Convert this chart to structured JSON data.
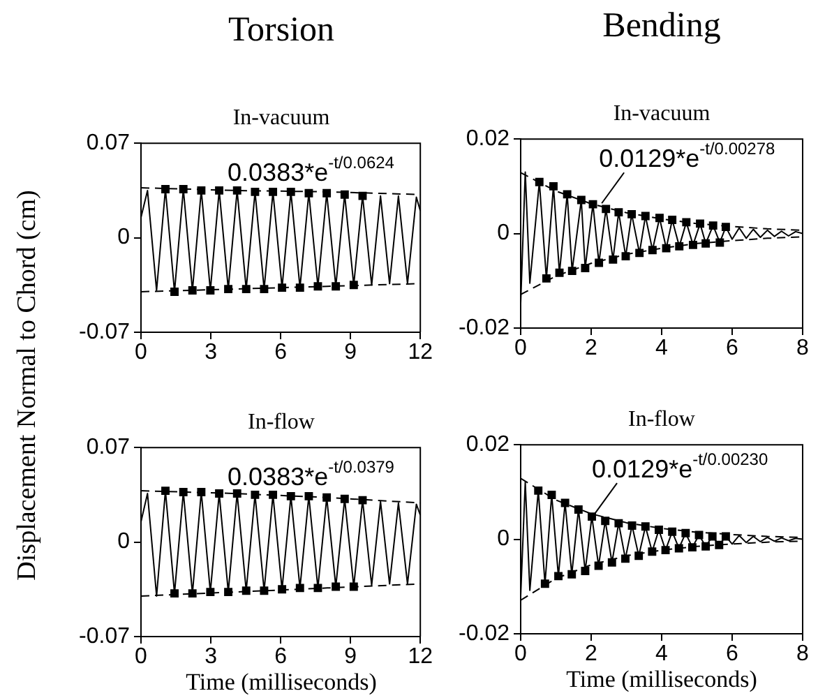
{
  "chart_data": [
    {
      "type": "line",
      "title": "Torsion",
      "subtitle": "In-vacuum",
      "ylabel": "Displacement Normal to Chord (cm)",
      "xlim": [
        0,
        12
      ],
      "ylim": [
        -0.07,
        0.07
      ],
      "xticks": [
        0,
        3,
        6,
        9,
        12
      ],
      "yticks": [
        -0.07,
        0,
        0.07
      ],
      "annotations": [
        "0.0383*e$^{-t/0.0624}$"
      ],
      "series": [
        {
          "type": "line",
          "color": "#000000",
          "marker": "none",
          "line_style": "solid",
          "x": [
            0,
            0.28,
            0.67,
            1.05,
            1.44,
            1.82,
            2.21,
            2.59,
            2.98,
            3.36,
            3.75,
            4.13,
            4.52,
            4.9,
            5.29,
            5.67,
            6.06,
            6.44,
            6.83,
            7.21,
            7.6,
            7.98,
            8.37,
            8.75,
            9.14,
            9.52,
            9.91,
            10.29,
            10.68,
            11.06,
            11.45,
            11.83,
            12
          ],
          "values": [
            0.015,
            0.035,
            -0.039,
            0.036,
            -0.04,
            0.036,
            -0.039,
            0.035,
            -0.039,
            0.035,
            -0.038,
            0.035,
            -0.038,
            0.034,
            -0.038,
            0.034,
            -0.037,
            0.034,
            -0.037,
            0.033,
            -0.036,
            0.033,
            -0.036,
            0.032,
            -0.035,
            0.031,
            -0.035,
            0.031,
            -0.034,
            0.031,
            -0.034,
            0.03,
            0.02
          ]
        },
        {
          "type": "scatter",
          "color": "#000000",
          "marker": "square",
          "x": [
            1.05,
            1.82,
            2.59,
            3.36,
            4.13,
            4.9,
            5.67,
            6.44,
            7.21,
            7.98,
            8.75,
            9.52,
            1.44,
            2.21,
            2.98,
            3.75,
            4.52,
            5.29,
            6.06,
            6.83,
            7.6,
            8.37,
            9.14
          ],
          "values": [
            0.036,
            0.036,
            0.035,
            0.035,
            0.035,
            0.034,
            0.034,
            0.034,
            0.033,
            0.033,
            0.032,
            0.031,
            -0.04,
            -0.039,
            -0.039,
            -0.038,
            -0.038,
            -0.038,
            -0.037,
            -0.037,
            -0.036,
            -0.036,
            -0.035
          ]
        },
        {
          "type": "line",
          "color": "#000000",
          "marker": "none",
          "line_style": "dashed",
          "x": [
            0,
            4,
            8,
            12
          ],
          "values": [
            0.037,
            0.035,
            0.034,
            0.032
          ]
        },
        {
          "type": "line",
          "color": "#000000",
          "marker": "none",
          "line_style": "dashed",
          "x": [
            0,
            4,
            8,
            12
          ],
          "values": [
            -0.04,
            -0.038,
            -0.036,
            -0.034
          ]
        }
      ]
    },
    {
      "type": "line",
      "title": "Bending",
      "subtitle": "In-vacuum",
      "xlim": [
        0,
        8
      ],
      "ylim": [
        -0.02,
        0.02
      ],
      "xticks": [
        0,
        2,
        4,
        6,
        8
      ],
      "yticks": [
        -0.02,
        0,
        0.02
      ],
      "annotations": [
        {
          "text": "0.0129*e$^{-t/0.00278}$",
          "x": 2.3,
          "y": 0.0064
        }
      ],
      "series": [
        {
          "type": "line",
          "color": "#000000",
          "marker": "none",
          "line_style": "solid",
          "x": [
            0,
            0.13,
            0.26,
            0.53,
            0.73,
            0.93,
            1.1,
            1.32,
            1.46,
            1.72,
            1.83,
            2.05,
            2.22,
            2.42,
            2.62,
            2.78,
            2.98,
            3.15,
            3.37,
            3.54,
            3.74,
            3.94,
            4.13,
            4.3,
            4.5,
            4.7,
            4.89,
            5.09,
            5.25,
            5.46,
            5.65,
            5.82,
            6.0,
            6.2,
            6.4,
            6.6,
            6.8,
            7.0,
            7.2,
            7.4,
            7.6,
            7.8,
            8.0
          ],
          "values": [
            -0.0148,
            0.013,
            -0.0105,
            0.0109,
            -0.0095,
            0.01,
            -0.0083,
            0.0083,
            -0.0079,
            0.0071,
            -0.0073,
            0.0062,
            -0.0062,
            0.0052,
            -0.0055,
            0.0045,
            -0.0048,
            0.0041,
            -0.0041,
            0.0037,
            -0.0035,
            0.0033,
            -0.0031,
            0.0029,
            -0.0027,
            0.0024,
            -0.0024,
            0.0021,
            -0.0021,
            0.0017,
            -0.0019,
            0.0014,
            -0.0012,
            0.0012,
            -0.001,
            0.0009,
            -0.0008,
            0.0007,
            -0.0006,
            0.0005,
            -0.0005,
            0.0004,
            0
          ]
        },
        {
          "type": "scatter",
          "color": "#000000",
          "marker": "square",
          "x": [
            0.53,
            0.93,
            1.32,
            1.72,
            2.05,
            2.42,
            2.78,
            3.15,
            3.54,
            3.94,
            4.3,
            4.7,
            5.09,
            5.46,
            5.82,
            0.73,
            1.1,
            1.46,
            1.83,
            2.22,
            2.62,
            2.98,
            3.37,
            3.74,
            4.13,
            4.5,
            4.89,
            5.25,
            5.65
          ],
          "values": [
            0.0109,
            0.01,
            0.0083,
            0.0071,
            0.0062,
            0.0052,
            0.0045,
            0.0041,
            0.0037,
            0.0033,
            0.0029,
            0.0024,
            0.0021,
            0.0017,
            0.0014,
            -0.0095,
            -0.0083,
            -0.0079,
            -0.0073,
            -0.0062,
            -0.0055,
            -0.0048,
            -0.0041,
            -0.0035,
            -0.0031,
            -0.0027,
            -0.0024,
            -0.0021,
            -0.0019
          ]
        },
        {
          "type": "line",
          "color": "#000000",
          "marker": "none",
          "line_style": "dashed",
          "x": [
            0,
            1,
            2,
            3,
            4,
            5,
            6,
            7,
            8
          ],
          "values": [
            0.0129,
            0.009,
            0.0063,
            0.0044,
            0.0031,
            0.0021,
            0.0015,
            0.001,
            0.0007
          ]
        },
        {
          "type": "line",
          "color": "#000000",
          "marker": "none",
          "line_style": "dashed",
          "x": [
            0,
            1,
            2,
            3,
            4,
            5,
            6,
            7,
            8
          ],
          "values": [
            -0.0129,
            -0.009,
            -0.0063,
            -0.0044,
            -0.0031,
            -0.0021,
            -0.0015,
            -0.001,
            -0.0007
          ]
        }
      ]
    },
    {
      "type": "line",
      "title": "In-flow",
      "xlabel": "Time (milliseconds)",
      "xlim": [
        0,
        12
      ],
      "ylim": [
        -0.07,
        0.07
      ],
      "xticks": [
        0,
        3,
        6,
        9,
        12
      ],
      "yticks": [
        -0.07,
        0,
        0.07
      ],
      "annotations": [
        "0.0383*e$^{-t/0.0379}$"
      ],
      "series": [
        {
          "type": "line",
          "color": "#000000",
          "marker": "none",
          "line_style": "solid",
          "x": [
            0,
            0.28,
            0.67,
            1.05,
            1.44,
            1.82,
            2.21,
            2.59,
            2.98,
            3.36,
            3.75,
            4.13,
            4.52,
            4.9,
            5.29,
            5.67,
            6.06,
            6.44,
            6.83,
            7.21,
            7.6,
            7.98,
            8.37,
            8.75,
            9.14,
            9.52,
            9.91,
            10.29,
            10.68,
            11.06,
            11.45,
            11.83,
            12
          ],
          "values": [
            0.015,
            0.036,
            -0.04,
            0.038,
            -0.038,
            0.037,
            -0.038,
            0.037,
            -0.037,
            0.036,
            -0.037,
            0.036,
            -0.036,
            0.035,
            -0.036,
            0.035,
            -0.035,
            0.034,
            -0.034,
            0.034,
            -0.034,
            0.033,
            -0.033,
            0.032,
            -0.033,
            0.031,
            -0.032,
            0.03,
            -0.031,
            0.029,
            -0.031,
            0.028,
            0.02
          ]
        },
        {
          "type": "scatter",
          "color": "#000000",
          "marker": "square",
          "x": [
            1.05,
            1.82,
            2.59,
            3.36,
            4.13,
            4.9,
            5.67,
            6.44,
            7.21,
            7.98,
            8.75,
            9.52,
            1.44,
            2.21,
            2.98,
            3.75,
            4.52,
            5.29,
            6.06,
            6.83,
            7.6,
            8.37,
            9.14
          ],
          "values": [
            0.038,
            0.037,
            0.037,
            0.036,
            0.036,
            0.035,
            0.035,
            0.034,
            0.034,
            0.033,
            0.032,
            0.031,
            -0.038,
            -0.038,
            -0.037,
            -0.037,
            -0.036,
            -0.036,
            -0.035,
            -0.034,
            -0.034,
            -0.033,
            -0.033
          ]
        },
        {
          "type": "line",
          "color": "#000000",
          "marker": "none",
          "line_style": "dashed",
          "x": [
            0,
            4,
            8,
            12
          ],
          "values": [
            0.038,
            0.036,
            0.033,
            0.029
          ]
        },
        {
          "type": "line",
          "color": "#000000",
          "marker": "none",
          "line_style": "dashed",
          "x": [
            0,
            4,
            8,
            12
          ],
          "values": [
            -0.04,
            -0.037,
            -0.034,
            -0.031
          ]
        }
      ]
    },
    {
      "type": "line",
      "title": "In-flow",
      "xlabel": "Time (milliseconds)",
      "xlim": [
        0,
        8
      ],
      "ylim": [
        -0.02,
        0.02
      ],
      "xticks": [
        0,
        2,
        4,
        6,
        8
      ],
      "yticks": [
        -0.02,
        0,
        0.02
      ],
      "annotations": [
        {
          "text": "0.0129*e$^{-t/0.00230}$",
          "x": 2.1,
          "y": 0.0054
        }
      ],
      "series": [
        {
          "type": "line",
          "color": "#000000",
          "marker": "none",
          "line_style": "solid",
          "x": [
            0,
            0.13,
            0.26,
            0.5,
            0.69,
            0.88,
            1.07,
            1.26,
            1.45,
            1.64,
            1.83,
            2.02,
            2.21,
            2.4,
            2.59,
            2.78,
            2.97,
            3.16,
            3.35,
            3.54,
            3.73,
            3.92,
            4.11,
            4.3,
            4.49,
            4.68,
            4.87,
            5.06,
            5.25,
            5.44,
            5.63,
            5.82,
            6.0,
            6.2,
            6.4,
            6.6,
            6.8,
            7.0,
            7.2,
            7.4,
            7.6,
            7.8,
            8.0
          ],
          "values": [
            -0.012,
            0.0121,
            -0.0108,
            0.0103,
            -0.0094,
            0.0094,
            -0.0078,
            0.0077,
            -0.0074,
            0.0063,
            -0.0067,
            0.0048,
            -0.0056,
            0.0039,
            -0.0049,
            0.0034,
            -0.0041,
            0.0029,
            -0.0035,
            0.0027,
            -0.0026,
            0.002,
            -0.0023,
            0.0016,
            -0.0019,
            0.0013,
            -0.0017,
            0.0009,
            -0.0015,
            0.0006,
            -0.0012,
            0.0006,
            -0.001,
            0.0008,
            -0.0007,
            0.0006,
            -0.0005,
            0.0004,
            -0.0004,
            0.0003,
            -0.0003,
            0.0002,
            0
          ]
        },
        {
          "type": "scatter",
          "color": "#000000",
          "marker": "square",
          "x": [
            0.5,
            0.88,
            1.26,
            1.64,
            2.02,
            2.4,
            2.78,
            3.16,
            3.54,
            3.92,
            4.3,
            4.68,
            5.06,
            5.44,
            5.82,
            0.69,
            1.07,
            1.45,
            1.83,
            2.21,
            2.59,
            2.97,
            3.35,
            3.73,
            4.11,
            4.49,
            4.87,
            5.25,
            5.63
          ],
          "values": [
            0.0103,
            0.0094,
            0.0077,
            0.0063,
            0.0048,
            0.0039,
            0.0034,
            0.0029,
            0.0027,
            0.002,
            0.0016,
            0.0013,
            0.0009,
            0.0006,
            0.0006,
            -0.0094,
            -0.0078,
            -0.0074,
            -0.0067,
            -0.0056,
            -0.0049,
            -0.0041,
            -0.0035,
            -0.0026,
            -0.0023,
            -0.0019,
            -0.0017,
            -0.0015,
            -0.0012
          ]
        },
        {
          "type": "line",
          "color": "#000000",
          "marker": "none",
          "line_style": "dashed",
          "x": [
            0,
            1,
            2,
            3,
            4,
            5,
            6,
            7,
            8
          ],
          "values": [
            0.0129,
            0.0083,
            0.0054,
            0.0035,
            0.0023,
            0.0015,
            0.001,
            0.0006,
            0.0004
          ]
        },
        {
          "type": "line",
          "color": "#000000",
          "marker": "none",
          "line_style": "dashed",
          "x": [
            0,
            1,
            2,
            3,
            4,
            5,
            6,
            7,
            8
          ],
          "values": [
            -0.0129,
            -0.0083,
            -0.0054,
            -0.0035,
            -0.0023,
            -0.0015,
            -0.001,
            -0.0006,
            -0.0004
          ]
        }
      ]
    }
  ]
}
